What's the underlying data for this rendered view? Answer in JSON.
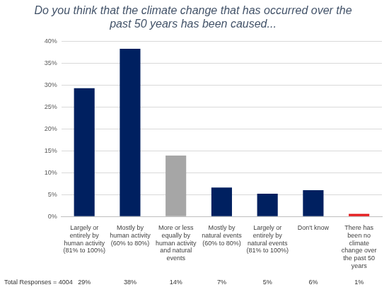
{
  "chart_data": {
    "type": "bar",
    "title": "Do you think that the climate change that has occurred over the past 50 years has been caused...",
    "categories": [
      "Largely or entirely by human activity (81% to 100%)",
      "Mostly by human activity (60% to 80%)",
      "More or less equally by human activity and natural events",
      "Mostly by natural events (60% to 80%)",
      "Largely or entirely by natural events (81% to 100%)",
      "Don't know",
      "There has been no climate change over the past 50 years"
    ],
    "values": [
      29.3,
      38.3,
      13.9,
      6.6,
      5.2,
      6,
      0.6
    ],
    "value_labels": [
      "29%",
      "38%",
      "14%",
      "7%",
      "5%",
      "6%",
      "1%"
    ],
    "data_labels": true,
    "colors": [
      "#002060",
      "#002060",
      "#a6a6a6",
      "#002060",
      "#002060",
      "#002060",
      "#e31a1c"
    ],
    "ylim": [
      0,
      40
    ],
    "yticks": [
      {
        "value": 0,
        "label": "0%"
      },
      {
        "value": 5,
        "label": "5%"
      },
      {
        "value": 10,
        "label": "10%"
      },
      {
        "value": 15,
        "label": "15%"
      },
      {
        "value": 20,
        "label": "20%"
      },
      {
        "value": 25,
        "label": "25%"
      },
      {
        "value": 30,
        "label": "30%"
      },
      {
        "value": 35,
        "label": "35%"
      },
      {
        "value": 40,
        "label": "40%"
      }
    ],
    "grid": true,
    "annotation": "Total Responses = 4004"
  }
}
